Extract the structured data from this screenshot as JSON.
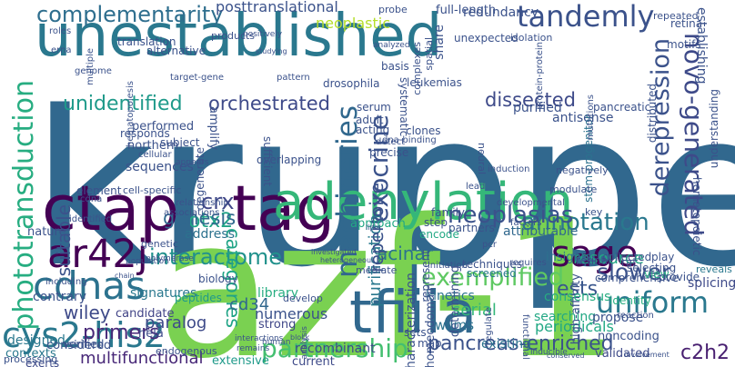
{
  "words": [
    {
      "text": "kruppel",
      "color": "#31688e"
    },
    {
      "text": "azf-1",
      "color": "#7ad151"
    },
    {
      "text": "unestablished",
      "color": "#2a788e"
    },
    {
      "text": "ctap",
      "color": "#440154"
    },
    {
      "text": "tag",
      "color": "#440154"
    },
    {
      "text": "adenylation",
      "color": "#35b779"
    },
    {
      "text": "tfiiia",
      "color": "#31688e"
    },
    {
      "text": "sage",
      "color": "#440154"
    },
    {
      "text": "ar42j",
      "color": "#440154"
    },
    {
      "text": "cdnas",
      "color": "#2c728e"
    },
    {
      "text": "cys2-his2",
      "color": "#2a788e"
    },
    {
      "text": "complementarity",
      "color": "#2e6e8e"
    },
    {
      "text": "tandemly",
      "color": "#3b528b"
    },
    {
      "text": "exemplified",
      "color": "#5ec962"
    },
    {
      "text": "annotation",
      "color": "#2a788e"
    },
    {
      "text": "uniform",
      "color": "#2a788e"
    },
    {
      "text": "slower",
      "color": "#3b528b"
    },
    {
      "text": "partnership",
      "color": "#44bf70"
    },
    {
      "text": "interactome",
      "color": "#21918c"
    },
    {
      "text": "phototransduction",
      "color": "#27ad81"
    },
    {
      "text": "derepression",
      "color": "#3b528b"
    },
    {
      "text": "novo-generated",
      "color": "#3e4a89"
    },
    {
      "text": "machineries",
      "color": "#31688e"
    },
    {
      "text": "exocrine",
      "color": "#3b528b"
    },
    {
      "text": "otx2",
      "color": "#20a486"
    },
    {
      "text": "crx",
      "color": "#404788"
    },
    {
      "text": "neoplasias",
      "color": "#3b528b"
    },
    {
      "text": "ests",
      "color": "#39568c"
    },
    {
      "text": "unidentified",
      "color": "#1f9a8a"
    },
    {
      "text": "orchestrated",
      "color": "#3e4a89"
    },
    {
      "text": "dissected",
      "color": "#3e4a89"
    },
    {
      "text": "c2h2",
      "color": "#481f70"
    },
    {
      "text": "pancreas-enriched",
      "color": "#3b528b"
    },
    {
      "text": "multifunctional",
      "color": "#482878"
    },
    {
      "text": "primers",
      "color": "#482878"
    },
    {
      "text": "genesis",
      "color": "#31688e"
    },
    {
      "text": "paralog",
      "color": "#3e4a89"
    },
    {
      "text": "acinar",
      "color": "#2c728e"
    },
    {
      "text": "serial",
      "color": "#35b779"
    },
    {
      "text": "purification",
      "color": "#2a788e"
    },
    {
      "text": "categories",
      "color": "#20a486"
    },
    {
      "text": "repertoire",
      "color": "#3b528b"
    },
    {
      "text": "resource",
      "color": "#22a884"
    },
    {
      "text": "wiley",
      "color": "#3e4a89"
    },
    {
      "text": "suitable",
      "color": "#3b528b"
    },
    {
      "text": "neoplastic",
      "color": "#b5de2b"
    },
    {
      "text": "cd34",
      "color": "#31688e"
    },
    {
      "text": "numerous",
      "color": "#3b528b"
    },
    {
      "text": "wilms",
      "color": "#2c728e"
    },
    {
      "text": "periodicals",
      "color": "#22a884"
    },
    {
      "text": "searching",
      "color": "#22a884"
    },
    {
      "text": "kinetics",
      "color": "#2c728e"
    },
    {
      "text": "characterization",
      "color": "#3b528b"
    },
    {
      "text": "homeodomain",
      "color": "#3b528b"
    },
    {
      "text": "determining",
      "color": "#3b528b"
    },
    {
      "text": "recombinant",
      "color": "#3e4a89"
    },
    {
      "text": "existing",
      "color": "#2c728e"
    },
    {
      "text": "current",
      "color": "#3e4a89"
    },
    {
      "text": "extensive",
      "color": "#1f9a8a"
    },
    {
      "text": "contrary",
      "color": "#3b528b"
    },
    {
      "text": "designed",
      "color": "#2a788e"
    },
    {
      "text": "contexts",
      "color": "#2a788e"
    },
    {
      "text": "considered",
      "color": "#3b528b"
    },
    {
      "text": "hela",
      "color": "#3e4a89"
    },
    {
      "text": "candidate",
      "color": "#414487"
    },
    {
      "text": "signatures",
      "color": "#2a788e"
    },
    {
      "text": "strong",
      "color": "#404788"
    },
    {
      "text": "library",
      "color": "#27ad81"
    },
    {
      "text": "verified",
      "color": "#3b528b"
    },
    {
      "text": "exerts",
      "color": "#3e4a89"
    },
    {
      "text": "processing",
      "color": "#3b528b"
    },
    {
      "text": "peptides",
      "color": "#1f9a8a"
    },
    {
      "text": "biology",
      "color": "#3b528b"
    },
    {
      "text": "address",
      "color": "#2c728e"
    },
    {
      "text": "approach",
      "color": "#22a884"
    },
    {
      "text": "attributable",
      "color": "#31688e"
    },
    {
      "text": "insights",
      "color": "#2c728e"
    },
    {
      "text": "collected",
      "color": "#3b528b"
    },
    {
      "text": "retinal",
      "color": "#3e4a89"
    },
    {
      "text": "reveals",
      "color": "#2a788e"
    },
    {
      "text": "comprehensive",
      "color": "#3b528b"
    },
    {
      "text": "selecting",
      "color": "#3b528b"
    },
    {
      "text": "splicing",
      "color": "#3e4a89"
    },
    {
      "text": "identity",
      "color": "#27ad81"
    },
    {
      "text": "propose",
      "color": "#3b528b"
    },
    {
      "text": "noncoding",
      "color": "#3b528b"
    },
    {
      "text": "validated",
      "color": "#3e4a89"
    },
    {
      "text": "high-affinity",
      "color": "#3b528b"
    },
    {
      "text": "view",
      "color": "#27ad81"
    },
    {
      "text": "consensus",
      "color": "#27ad81"
    },
    {
      "text": "techniques",
      "color": "#3b528b"
    },
    {
      "text": "screened",
      "color": "#2a788e"
    },
    {
      "text": "represent",
      "color": "#3b528b"
    },
    {
      "text": "encode",
      "color": "#22a884"
    },
    {
      "text": "partners",
      "color": "#3b528b"
    },
    {
      "text": "step",
      "color": "#3b528b"
    },
    {
      "text": "family",
      "color": "#3b528b"
    },
    {
      "text": "clones",
      "color": "#3b528b"
    },
    {
      "text": "precise",
      "color": "#3b528b"
    },
    {
      "text": "acting",
      "color": "#3b528b"
    },
    {
      "text": "adult",
      "color": "#3b528b"
    },
    {
      "text": "serum",
      "color": "#3b528b"
    },
    {
      "text": "detect",
      "color": "#3b528b"
    },
    {
      "text": "purified",
      "color": "#3b528b"
    },
    {
      "text": "antisense",
      "color": "#3b528b"
    },
    {
      "text": "stem-progenitor",
      "color": "#2c728e"
    },
    {
      "text": "mutations",
      "color": "#3b528b"
    },
    {
      "text": "pancreatic",
      "color": "#3b528b"
    },
    {
      "text": "hematopoietic",
      "color": "#3b528b"
    },
    {
      "text": "understanding",
      "color": "#3b528b"
    },
    {
      "text": "distributed",
      "color": "#3b528b"
    },
    {
      "text": "establishing",
      "color": "#3b528b"
    },
    {
      "text": "motifs",
      "color": "#3b528b"
    },
    {
      "text": "retina",
      "color": "#3b528b"
    },
    {
      "text": "repeated",
      "color": "#3b528b"
    },
    {
      "text": "isolation",
      "color": "#3b528b"
    },
    {
      "text": "unexpected",
      "color": "#3b528b"
    },
    {
      "text": "redundancy",
      "color": "#3b528b"
    },
    {
      "text": "full-length",
      "color": "#3b528b"
    },
    {
      "text": "probe",
      "color": "#3b528b"
    },
    {
      "text": "share",
      "color": "#3b528b"
    },
    {
      "text": "spatial",
      "color": "#3b528b"
    },
    {
      "text": "posttranslational",
      "color": "#3b528b"
    },
    {
      "text": "translation",
      "color": "#3b528b"
    },
    {
      "text": "alternative",
      "color": "#3b528b"
    },
    {
      "text": "products",
      "color": "#3b528b"
    },
    {
      "text": "positively",
      "color": "#3b528b"
    },
    {
      "text": "studying",
      "color": "#3b528b"
    },
    {
      "text": "complexes",
      "color": "#3b528b"
    },
    {
      "text": "analyzed",
      "color": "#3b528b"
    },
    {
      "text": "protein-protein",
      "color": "#3b528b"
    },
    {
      "text": "roles",
      "color": "#3b528b"
    },
    {
      "text": "multiple",
      "color": "#3b528b"
    },
    {
      "text": "erna",
      "color": "#3b528b"
    },
    {
      "text": "genome",
      "color": "#3b528b"
    },
    {
      "text": "hematopoiesis",
      "color": "#3b528b"
    },
    {
      "text": "target-gene",
      "color": "#3b528b"
    },
    {
      "text": "pattern",
      "color": "#3b528b"
    },
    {
      "text": "basis",
      "color": "#3b528b"
    },
    {
      "text": "drosophila",
      "color": "#3b528b"
    },
    {
      "text": "leukemias",
      "color": "#3b528b"
    },
    {
      "text": "systematic",
      "color": "#3b528b"
    },
    {
      "text": "dna-binding",
      "color": "#3b528b"
    },
    {
      "text": "performed",
      "color": "#3b528b"
    },
    {
      "text": "responds",
      "color": "#3b528b"
    },
    {
      "text": "northern",
      "color": "#3b528b"
    },
    {
      "text": "subject",
      "color": "#3b528b"
    },
    {
      "text": "degenerate",
      "color": "#3b528b"
    },
    {
      "text": "amplify",
      "color": "#3b528b"
    },
    {
      "text": "sufficient",
      "color": "#3b528b"
    },
    {
      "text": "overlapping",
      "color": "#3b528b"
    },
    {
      "text": "sequences",
      "color": "#3b528b"
    },
    {
      "text": "appears",
      "color": "#3b528b"
    },
    {
      "text": "cell-specific",
      "color": "#3b528b"
    },
    {
      "text": "cellular",
      "color": "#3b528b"
    },
    {
      "text": "identified",
      "color": "#3b528b"
    },
    {
      "text": "element",
      "color": "#3b528b"
    },
    {
      "text": "cdna",
      "color": "#3b528b"
    },
    {
      "text": "relationship",
      "color": "#3b528b"
    },
    {
      "text": "nature",
      "color": "#3b528b"
    },
    {
      "text": "including",
      "color": "#3b528b"
    },
    {
      "text": "associations",
      "color": "#3b528b"
    },
    {
      "text": "genetic",
      "color": "#3b528b"
    },
    {
      "text": "chain",
      "color": "#3b528b"
    },
    {
      "text": "polymerase",
      "color": "#3b528b"
    },
    {
      "text": "population",
      "color": "#3b528b"
    },
    {
      "text": "develop",
      "color": "#3b528b"
    },
    {
      "text": "mediate",
      "color": "#3b528b"
    },
    {
      "text": "modulate",
      "color": "#3b528b"
    },
    {
      "text": "developmental",
      "color": "#3b528b"
    },
    {
      "text": "key",
      "color": "#3b528b"
    },
    {
      "text": "negatively",
      "color": "#3b528b"
    },
    {
      "text": "factors",
      "color": "#3b528b"
    },
    {
      "text": "rat",
      "color": "#3b528b"
    },
    {
      "text": "play",
      "color": "#3b528b"
    },
    {
      "text": "provide",
      "color": "#3b528b"
    },
    {
      "text": "requires",
      "color": "#3b528b"
    },
    {
      "text": "pcr",
      "color": "#3b528b"
    },
    {
      "text": "induction",
      "color": "#3b528b"
    },
    {
      "text": "neural",
      "color": "#3b528b"
    },
    {
      "text": "lead",
      "color": "#3b528b"
    },
    {
      "text": "initiation",
      "color": "#3b528b"
    },
    {
      "text": "sets",
      "color": "#3b528b"
    },
    {
      "text": "map",
      "color": "#3b528b"
    },
    {
      "text": "regulate",
      "color": "#3b528b"
    },
    {
      "text": "functional",
      "color": "#3b528b"
    },
    {
      "text": "reaction",
      "color": "#3b528b"
    },
    {
      "text": "involvement",
      "color": "#3b528b"
    },
    {
      "text": "conserved",
      "color": "#3b528b"
    },
    {
      "text": "inducible",
      "color": "#3b528b"
    },
    {
      "text": "block",
      "color": "#3b528b"
    },
    {
      "text": "analysis",
      "color": "#3b528b"
    },
    {
      "text": "endogenous",
      "color": "#3b528b"
    },
    {
      "text": "remains",
      "color": "#3b528b"
    },
    {
      "text": "interactions",
      "color": "#3b528b"
    },
    {
      "text": "human",
      "color": "#3b528b"
    },
    {
      "text": "investigated",
      "color": "#3b528b"
    },
    {
      "text": "heterogeneous",
      "color": "#3b528b"
    },
    {
      "text": "lipid",
      "color": "#3b528b"
    }
  ]
}
